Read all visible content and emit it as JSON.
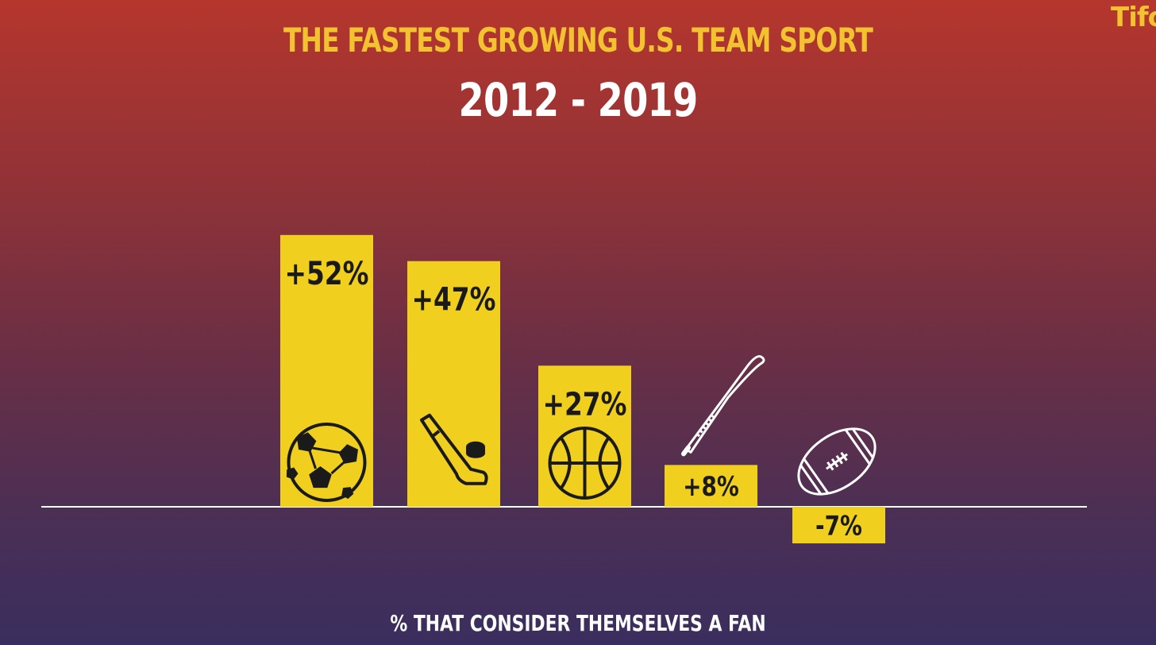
{
  "header": {
    "title": "THE FASTEST GROWING U.S. TEAM SPORT",
    "subtitle": "2012 - 2019",
    "logo": "Tifo"
  },
  "colors": {
    "bar": "#f0cf1e",
    "baseline": "#ffffff",
    "icon_dark": "#1a1a1a",
    "icon_light": "#ffffff"
  },
  "chart_data": {
    "type": "bar",
    "title": "THE FASTEST GROWING U.S. TEAM SPORT",
    "subtitle": "2012 - 2019",
    "caption": "% THAT CONSIDER THEMSELVES A FAN",
    "values": [
      52,
      47,
      27,
      8,
      -7
    ],
    "data_labels": [
      "+52%",
      "+47%",
      "+27%",
      "+8%",
      "-7%"
    ],
    "icons": [
      "soccer-ball-icon",
      "hockey-stick-icon",
      "basketball-icon",
      "baseball-bat-icon",
      "american-football-icon"
    ],
    "grid": false,
    "legend": "none"
  },
  "footer": {
    "caption": "% THAT CONSIDER THEMSELVES A FAN"
  }
}
